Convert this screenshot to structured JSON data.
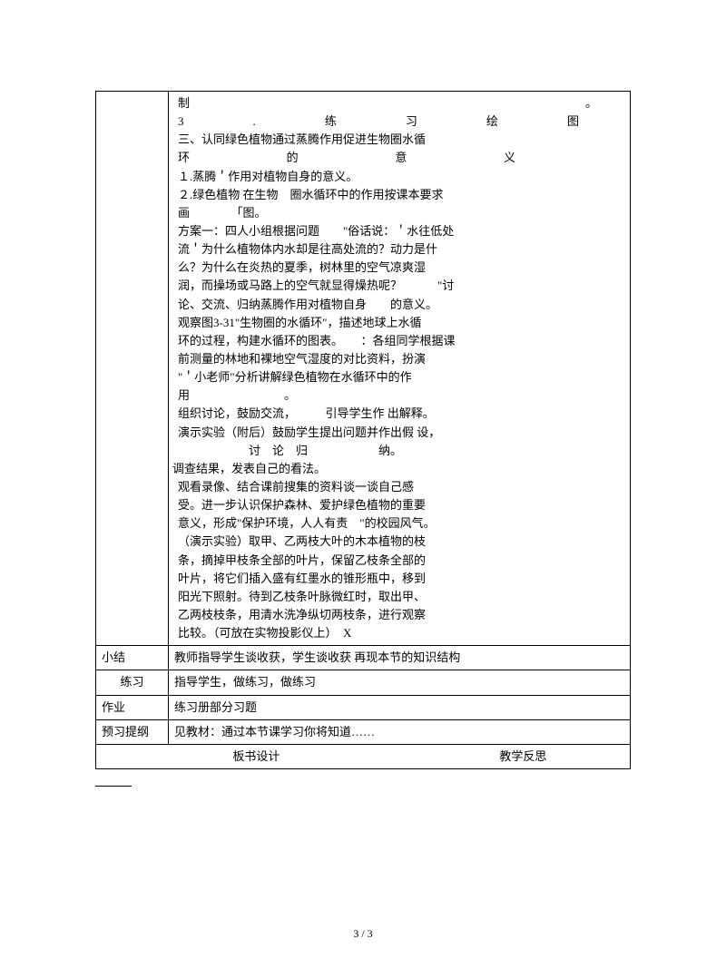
{
  "table": {
    "mainContent": {
      "lines": [
        {
          "type": "j1",
          "parts": [
            "制",
            "。"
          ]
        },
        {
          "type": "j3",
          "parts": [
            "3",
            ".",
            "练",
            "习",
            "绘",
            "图"
          ]
        },
        {
          "type": "plain",
          "text": "三、认同绿色植物通过蒸腾作用促进生物圈水循"
        },
        {
          "type": "j2",
          "parts": [
            "环",
            "的",
            "意",
            "义"
          ]
        },
        {
          "type": "plain",
          "text": "１.蒸腾＇作用对植物自身的意义。"
        },
        {
          "type": "plain",
          "text": "２.绿色植物 在生物　圈水循环中的作用按课本要求"
        },
        {
          "type": "plain",
          "text": "画　　　　「图。"
        },
        {
          "type": "plain",
          "text": "方案一：四人小组根据问题　　\"俗话说：＇水往低处"
        },
        {
          "type": "plain",
          "text": "流＇为什么植物体内水却是往高处流的？动力是什"
        },
        {
          "type": "plain",
          "text": "么？为什么在炎热的夏季，树林里的空气凉爽湿"
        },
        {
          "type": "plain",
          "text": "润，而操场或马路上的空气就显得燥热呢？　　　\"讨"
        },
        {
          "type": "plain",
          "text": "论、交流、归纳蒸腾作用对植物自身　　的意义。"
        },
        {
          "type": "plain",
          "text": "观察图3-31\"生物圈的水循环\"，描述地球上水循"
        },
        {
          "type": "plain",
          "text": "环的过程，构建水循环的图表。　　：各组同学根据课"
        },
        {
          "type": "plain",
          "text": "前测量的林地和裸地空气湿度的对比资料，扮演"
        },
        {
          "type": "plain",
          "text": "\"＇小老师\"分析讲解绿色植物在水循环中的作"
        },
        {
          "type": "plain",
          "text": "用　　　　　　　　。"
        },
        {
          "type": "plain",
          "text": "组织讨论，鼓励交流，　　　引导学生作 出解释。"
        },
        {
          "type": "plain",
          "text": "演示实验（附后）鼓励学生提出问题并作出假 设，"
        },
        {
          "type": "plain",
          "text": "　　　　　　讨　论　归　　　　　　纳。"
        },
        {
          "type": "outdent",
          "text": "调查结果，发表自己的看法。"
        },
        {
          "type": "plain",
          "text": "观看录像、结合课前搜集的资料谈一谈自己感"
        },
        {
          "type": "plain",
          "text": "受。进一步认识保护森林、爱护绿色植物的重要"
        },
        {
          "type": "plain",
          "text": "意义，形成\"保护环境，人人有责　\"的校园风气。"
        },
        {
          "type": "plain",
          "text": "（演示实验）取甲、乙两枝大叶的木本植物的枝"
        },
        {
          "type": "plain",
          "text": "条，摘掉甲枝条全部的叶片，保留乙枝条全部的"
        },
        {
          "type": "plain",
          "text": "叶片，将它们插入盛有红墨水的锥形瓶中，移到"
        },
        {
          "type": "plain",
          "text": "阳光下照射。待到乙枝条叶脉微红时，取出甲、"
        },
        {
          "type": "plain",
          "text": "乙两枝枝条，用清水洗净纵切两枝条，进行观察"
        },
        {
          "type": "plain",
          "text": "比较。（可放在实物投影仪上）　X"
        }
      ]
    },
    "rows": [
      {
        "label": "小结",
        "text": "教师指导学生谈收获，学生谈收获 再现本节的知识结构"
      },
      {
        "label": "练习",
        "text": "指导学生，做练习，做练习"
      },
      {
        "label": "作业",
        "text": "练习册部分习题"
      },
      {
        "label": "预习提纲",
        "text": "见教材：通过本节课学习你将知道……"
      }
    ],
    "design": {
      "col1": "板书设计",
      "col2": "教学反思"
    }
  },
  "footer": "3 / 3"
}
